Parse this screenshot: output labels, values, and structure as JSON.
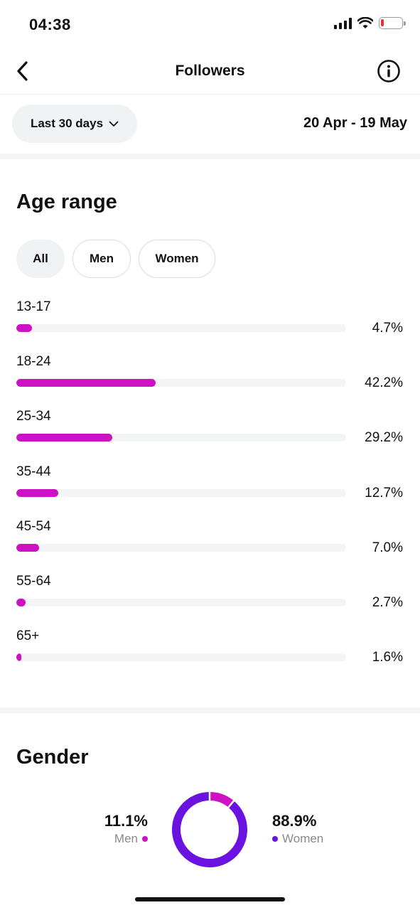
{
  "status": {
    "time": "04:38"
  },
  "header": {
    "title": "Followers"
  },
  "filter": {
    "period_label": "Last 30 days",
    "date_range": "20 Apr - 19 May"
  },
  "age": {
    "title": "Age range",
    "chips": {
      "all": "All",
      "men": "Men",
      "women": "Women"
    },
    "rows": [
      {
        "label": "13-17",
        "pct": "4.7%"
      },
      {
        "label": "18-24",
        "pct": "42.2%"
      },
      {
        "label": "25-34",
        "pct": "29.2%"
      },
      {
        "label": "35-44",
        "pct": "12.7%"
      },
      {
        "label": "45-54",
        "pct": "7.0%"
      },
      {
        "label": "55-64",
        "pct": "2.7%"
      },
      {
        "label": "65+",
        "pct": "1.6%"
      }
    ]
  },
  "gender": {
    "title": "Gender",
    "men": {
      "pct": "11.1%",
      "label": "Men"
    },
    "women": {
      "pct": "88.9%",
      "label": "Women"
    }
  },
  "colors": {
    "accent_magenta": "#cc12c4",
    "accent_purple": "#6a12e0",
    "track": "#f3f4f6"
  },
  "chart_data": [
    {
      "type": "bar",
      "categories": [
        "13-17",
        "18-24",
        "25-34",
        "35-44",
        "45-54",
        "55-64",
        "65+"
      ],
      "values": [
        4.7,
        42.2,
        29.2,
        12.7,
        7.0,
        2.7,
        1.6
      ],
      "title": "Age range",
      "xlabel": "",
      "ylabel": "",
      "ylim": [
        0,
        100
      ]
    },
    {
      "type": "pie",
      "categories": [
        "Men",
        "Women"
      ],
      "values": [
        11.1,
        88.9
      ],
      "title": "Gender",
      "colors": [
        "#cc12c4",
        "#6a12e0"
      ]
    }
  ]
}
